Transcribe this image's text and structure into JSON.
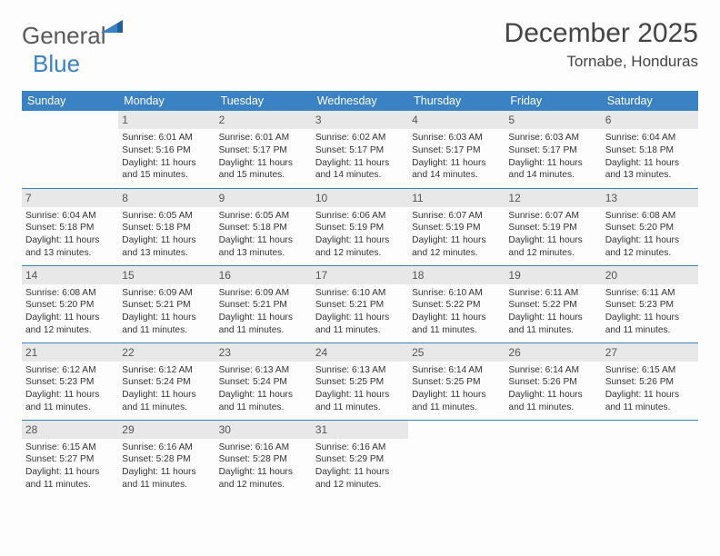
{
  "logo": {
    "word1": "General",
    "word2": "Blue"
  },
  "title": "December 2025",
  "location": "Tornabe, Honduras",
  "headers": [
    "Sunday",
    "Monday",
    "Tuesday",
    "Wednesday",
    "Thursday",
    "Friday",
    "Saturday"
  ],
  "colors": {
    "accent": "#3b82c4",
    "headerText": "#ffffff",
    "dayNumBg": "#e8e8e8",
    "text": "#333333",
    "logoGray": "#5a5a5a",
    "background": "#fdfdfd"
  },
  "fonts": {
    "monthTitle_pt": 30,
    "location_pt": 17,
    "header_pt": 12.5,
    "dayNum_pt": 12,
    "body_pt": 10.2,
    "logo_pt": 26
  },
  "weeks": [
    [
      {
        "day": "",
        "sunrise": "",
        "sunset": "",
        "daylight": ""
      },
      {
        "day": "1",
        "sunrise": "Sunrise: 6:01 AM",
        "sunset": "Sunset: 5:16 PM",
        "daylight": "Daylight: 11 hours and 15 minutes."
      },
      {
        "day": "2",
        "sunrise": "Sunrise: 6:01 AM",
        "sunset": "Sunset: 5:17 PM",
        "daylight": "Daylight: 11 hours and 15 minutes."
      },
      {
        "day": "3",
        "sunrise": "Sunrise: 6:02 AM",
        "sunset": "Sunset: 5:17 PM",
        "daylight": "Daylight: 11 hours and 14 minutes."
      },
      {
        "day": "4",
        "sunrise": "Sunrise: 6:03 AM",
        "sunset": "Sunset: 5:17 PM",
        "daylight": "Daylight: 11 hours and 14 minutes."
      },
      {
        "day": "5",
        "sunrise": "Sunrise: 6:03 AM",
        "sunset": "Sunset: 5:17 PM",
        "daylight": "Daylight: 11 hours and 14 minutes."
      },
      {
        "day": "6",
        "sunrise": "Sunrise: 6:04 AM",
        "sunset": "Sunset: 5:18 PM",
        "daylight": "Daylight: 11 hours and 13 minutes."
      }
    ],
    [
      {
        "day": "7",
        "sunrise": "Sunrise: 6:04 AM",
        "sunset": "Sunset: 5:18 PM",
        "daylight": "Daylight: 11 hours and 13 minutes."
      },
      {
        "day": "8",
        "sunrise": "Sunrise: 6:05 AM",
        "sunset": "Sunset: 5:18 PM",
        "daylight": "Daylight: 11 hours and 13 minutes."
      },
      {
        "day": "9",
        "sunrise": "Sunrise: 6:05 AM",
        "sunset": "Sunset: 5:18 PM",
        "daylight": "Daylight: 11 hours and 13 minutes."
      },
      {
        "day": "10",
        "sunrise": "Sunrise: 6:06 AM",
        "sunset": "Sunset: 5:19 PM",
        "daylight": "Daylight: 11 hours and 12 minutes."
      },
      {
        "day": "11",
        "sunrise": "Sunrise: 6:07 AM",
        "sunset": "Sunset: 5:19 PM",
        "daylight": "Daylight: 11 hours and 12 minutes."
      },
      {
        "day": "12",
        "sunrise": "Sunrise: 6:07 AM",
        "sunset": "Sunset: 5:19 PM",
        "daylight": "Daylight: 11 hours and 12 minutes."
      },
      {
        "day": "13",
        "sunrise": "Sunrise: 6:08 AM",
        "sunset": "Sunset: 5:20 PM",
        "daylight": "Daylight: 11 hours and 12 minutes."
      }
    ],
    [
      {
        "day": "14",
        "sunrise": "Sunrise: 6:08 AM",
        "sunset": "Sunset: 5:20 PM",
        "daylight": "Daylight: 11 hours and 12 minutes."
      },
      {
        "day": "15",
        "sunrise": "Sunrise: 6:09 AM",
        "sunset": "Sunset: 5:21 PM",
        "daylight": "Daylight: 11 hours and 11 minutes."
      },
      {
        "day": "16",
        "sunrise": "Sunrise: 6:09 AM",
        "sunset": "Sunset: 5:21 PM",
        "daylight": "Daylight: 11 hours and 11 minutes."
      },
      {
        "day": "17",
        "sunrise": "Sunrise: 6:10 AM",
        "sunset": "Sunset: 5:21 PM",
        "daylight": "Daylight: 11 hours and 11 minutes."
      },
      {
        "day": "18",
        "sunrise": "Sunrise: 6:10 AM",
        "sunset": "Sunset: 5:22 PM",
        "daylight": "Daylight: 11 hours and 11 minutes."
      },
      {
        "day": "19",
        "sunrise": "Sunrise: 6:11 AM",
        "sunset": "Sunset: 5:22 PM",
        "daylight": "Daylight: 11 hours and 11 minutes."
      },
      {
        "day": "20",
        "sunrise": "Sunrise: 6:11 AM",
        "sunset": "Sunset: 5:23 PM",
        "daylight": "Daylight: 11 hours and 11 minutes."
      }
    ],
    [
      {
        "day": "21",
        "sunrise": "Sunrise: 6:12 AM",
        "sunset": "Sunset: 5:23 PM",
        "daylight": "Daylight: 11 hours and 11 minutes."
      },
      {
        "day": "22",
        "sunrise": "Sunrise: 6:12 AM",
        "sunset": "Sunset: 5:24 PM",
        "daylight": "Daylight: 11 hours and 11 minutes."
      },
      {
        "day": "23",
        "sunrise": "Sunrise: 6:13 AM",
        "sunset": "Sunset: 5:24 PM",
        "daylight": "Daylight: 11 hours and 11 minutes."
      },
      {
        "day": "24",
        "sunrise": "Sunrise: 6:13 AM",
        "sunset": "Sunset: 5:25 PM",
        "daylight": "Daylight: 11 hours and 11 minutes."
      },
      {
        "day": "25",
        "sunrise": "Sunrise: 6:14 AM",
        "sunset": "Sunset: 5:25 PM",
        "daylight": "Daylight: 11 hours and 11 minutes."
      },
      {
        "day": "26",
        "sunrise": "Sunrise: 6:14 AM",
        "sunset": "Sunset: 5:26 PM",
        "daylight": "Daylight: 11 hours and 11 minutes."
      },
      {
        "day": "27",
        "sunrise": "Sunrise: 6:15 AM",
        "sunset": "Sunset: 5:26 PM",
        "daylight": "Daylight: 11 hours and 11 minutes."
      }
    ],
    [
      {
        "day": "28",
        "sunrise": "Sunrise: 6:15 AM",
        "sunset": "Sunset: 5:27 PM",
        "daylight": "Daylight: 11 hours and 11 minutes."
      },
      {
        "day": "29",
        "sunrise": "Sunrise: 6:16 AM",
        "sunset": "Sunset: 5:28 PM",
        "daylight": "Daylight: 11 hours and 11 minutes."
      },
      {
        "day": "30",
        "sunrise": "Sunrise: 6:16 AM",
        "sunset": "Sunset: 5:28 PM",
        "daylight": "Daylight: 11 hours and 12 minutes."
      },
      {
        "day": "31",
        "sunrise": "Sunrise: 6:16 AM",
        "sunset": "Sunset: 5:29 PM",
        "daylight": "Daylight: 11 hours and 12 minutes."
      },
      {
        "day": "",
        "sunrise": "",
        "sunset": "",
        "daylight": ""
      },
      {
        "day": "",
        "sunrise": "",
        "sunset": "",
        "daylight": ""
      },
      {
        "day": "",
        "sunrise": "",
        "sunset": "",
        "daylight": ""
      }
    ]
  ]
}
